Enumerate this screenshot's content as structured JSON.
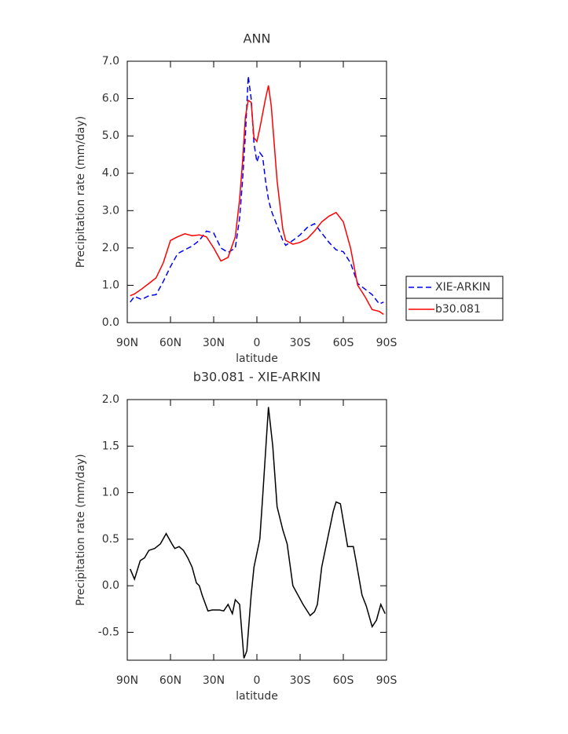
{
  "chart_data": [
    {
      "type": "line",
      "title": "ANN",
      "xlabel": "latitude",
      "ylabel": "Precipitation rate (mm/day)",
      "xlim": [
        90,
        -90
      ],
      "xticks": [
        {
          "value": 90,
          "label": "90N"
        },
        {
          "value": 60,
          "label": "60N"
        },
        {
          "value": 30,
          "label": "30N"
        },
        0,
        {
          "value": -30,
          "label": "30S"
        },
        {
          "value": -60,
          "label": "60S"
        },
        {
          "value": -90,
          "label": "90S"
        }
      ],
      "ylim": [
        0,
        7
      ],
      "yticks": [
        {
          "value": 0,
          "label": "0.0"
        },
        {
          "value": 1,
          "label": "1.0"
        },
        {
          "value": 2,
          "label": "2.0"
        },
        {
          "value": 3,
          "label": "3.0"
        },
        {
          "value": 4,
          "label": "4.0"
        },
        {
          "value": 5,
          "label": "5.0"
        },
        {
          "value": 6,
          "label": "6.0"
        },
        {
          "value": 7,
          "label": "7.0"
        }
      ],
      "legend": "right",
      "x": [
        88,
        85,
        80,
        75,
        70,
        65,
        60,
        55,
        50,
        45,
        40,
        35,
        30,
        25,
        20,
        15,
        12,
        10,
        8,
        6,
        4,
        2,
        0,
        -2,
        -4,
        -6,
        -8,
        -10,
        -14,
        -18,
        -20,
        -25,
        -30,
        -35,
        -40,
        -45,
        -50,
        -55,
        -60,
        -65,
        -70,
        -75,
        -80,
        -85,
        -88
      ],
      "series": [
        {
          "name": "XIE-ARKIN",
          "color": "#0000ff",
          "dash": true,
          "values": [
            0.55,
            0.7,
            0.62,
            0.72,
            0.75,
            1.1,
            1.5,
            1.85,
            1.95,
            2.05,
            2.2,
            2.45,
            2.4,
            2.0,
            1.88,
            2.0,
            2.8,
            3.8,
            5.0,
            6.6,
            6.0,
            4.8,
            4.3,
            4.55,
            4.45,
            3.8,
            3.3,
            3.0,
            2.6,
            2.2,
            2.07,
            2.2,
            2.35,
            2.55,
            2.65,
            2.4,
            2.15,
            1.95,
            1.9,
            1.6,
            1.05,
            0.9,
            0.75,
            0.5,
            0.55
          ]
        },
        {
          "name": "b30.081",
          "color": "#ff0000",
          "dash": false,
          "values": [
            0.72,
            0.77,
            0.9,
            1.05,
            1.2,
            1.6,
            2.2,
            2.3,
            2.38,
            2.33,
            2.35,
            2.3,
            2.0,
            1.65,
            1.75,
            2.3,
            3.3,
            4.3,
            5.5,
            5.95,
            5.9,
            4.95,
            4.85,
            5.2,
            5.6,
            6.0,
            6.35,
            5.8,
            3.8,
            2.5,
            2.2,
            2.1,
            2.15,
            2.25,
            2.45,
            2.7,
            2.85,
            2.95,
            2.7,
            2.0,
            1.0,
            0.7,
            0.35,
            0.3,
            0.22
          ]
        }
      ]
    },
    {
      "type": "line",
      "title": "b30.081 - XIE-ARKIN",
      "xlabel": "latitude",
      "ylabel": "Precipitation rate (mm/day)",
      "xlim": [
        90,
        -90
      ],
      "xticks": [
        {
          "value": 90,
          "label": "90N"
        },
        {
          "value": 60,
          "label": "60N"
        },
        {
          "value": 30,
          "label": "30N"
        },
        0,
        {
          "value": -30,
          "label": "30S"
        },
        {
          "value": -60,
          "label": "60S"
        },
        {
          "value": -90,
          "label": "90S"
        }
      ],
      "ylim": [
        -0.8,
        2.0
      ],
      "yticks": [
        -0.5,
        {
          "value": 0,
          "label": "0.0"
        },
        0.5,
        {
          "value": 1,
          "label": "1.0"
        },
        1.5,
        {
          "value": 2,
          "label": "2.0"
        }
      ],
      "x": [
        88,
        85,
        81,
        78,
        75,
        71,
        67,
        63,
        59,
        57,
        54,
        51,
        48,
        45,
        42,
        40,
        38,
        34,
        31,
        26,
        23,
        20,
        17,
        15,
        12,
        9,
        7,
        4,
        2,
        -2,
        -4,
        -8,
        -11,
        -14,
        -18,
        -21,
        -25,
        -32,
        -37,
        -40,
        -42,
        -45,
        -53,
        -55,
        -58,
        -63,
        -67,
        -69,
        -73,
        -76,
        -80,
        -83,
        -86,
        -89
      ],
      "series": [
        {
          "color": "#000000",
          "dash": false,
          "values": [
            0.18,
            0.07,
            0.27,
            0.3,
            0.38,
            0.4,
            0.45,
            0.56,
            0.45,
            0.4,
            0.42,
            0.38,
            0.3,
            0.2,
            0.03,
            0.0,
            -0.1,
            -0.27,
            -0.26,
            -0.26,
            -0.27,
            -0.2,
            -0.3,
            -0.15,
            -0.2,
            -0.78,
            -0.7,
            -0.1,
            0.2,
            0.5,
            0.95,
            1.92,
            1.5,
            0.85,
            0.6,
            0.45,
            0.0,
            -0.2,
            -0.32,
            -0.28,
            -0.2,
            0.2,
            0.8,
            0.9,
            0.88,
            0.42,
            0.42,
            0.25,
            -0.1,
            -0.22,
            -0.44,
            -0.37,
            -0.2,
            -0.3
          ]
        }
      ]
    }
  ]
}
